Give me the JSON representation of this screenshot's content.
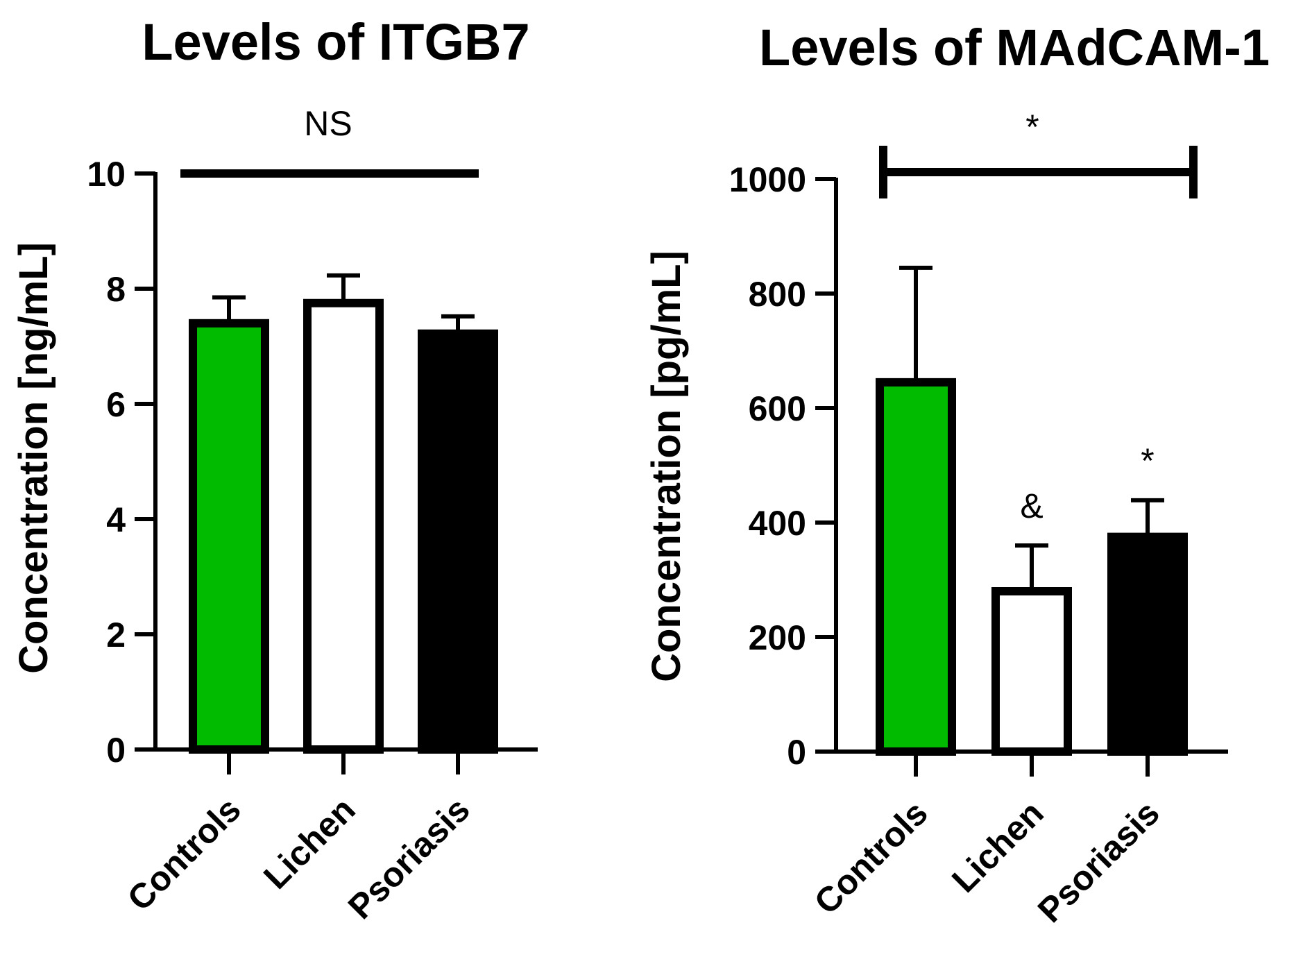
{
  "chart_data": [
    {
      "type": "bar",
      "title": "Levels of ITGB7",
      "ylabel": "Concentration [ng/mL]",
      "xlabel": "",
      "categories": [
        "Controls",
        "Lichen",
        "Psoriasis"
      ],
      "values": [
        7.4,
        7.75,
        7.22
      ],
      "errors": [
        0.45,
        0.48,
        0.3
      ],
      "colors": [
        "#00bb00",
        "#ffffff",
        "#000000"
      ],
      "ylim": [
        0,
        10
      ],
      "yticks": [
        0,
        2,
        4,
        6,
        8,
        10
      ],
      "bar_annotations": [
        "",
        "",
        ""
      ],
      "comparison": {
        "label": "NS",
        "from": 0,
        "to": 2,
        "y": 10,
        "caps": false
      }
    },
    {
      "type": "bar",
      "title": "Levels of MAdCAM-1",
      "ylabel": "Concentration [pg/mL]",
      "xlabel": "",
      "categories": [
        "Controls",
        "Lichen",
        "Psoriasis"
      ],
      "values": [
        645,
        280,
        375
      ],
      "errors": [
        200,
        80,
        64
      ],
      "colors": [
        "#00bb00",
        "#ffffff",
        "#000000"
      ],
      "ylim": [
        0,
        1000
      ],
      "yticks": [
        0,
        200,
        400,
        600,
        800,
        1000
      ],
      "bar_annotations": [
        "",
        "&",
        "*"
      ],
      "comparison": {
        "label": "*",
        "from": 0,
        "to": 2,
        "y": 990,
        "caps": true
      }
    }
  ]
}
